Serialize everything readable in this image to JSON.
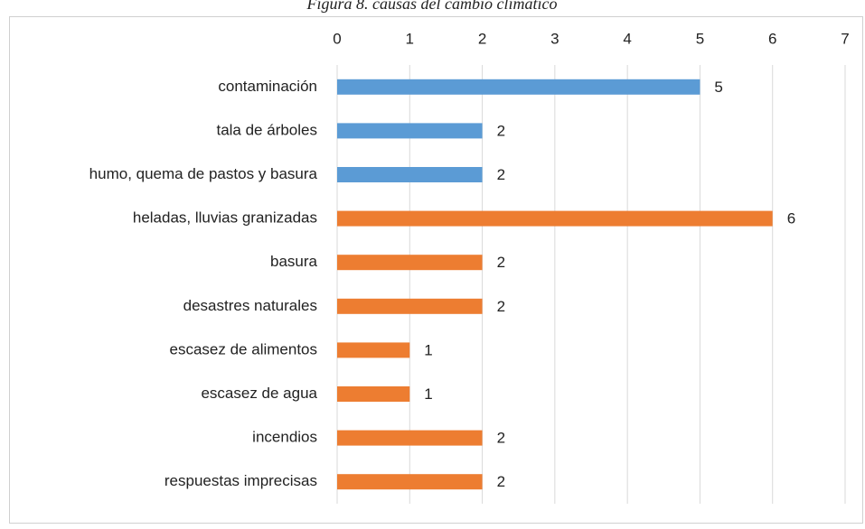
{
  "chart_data": {
    "type": "bar",
    "orientation": "horizontal",
    "title": "Figura 8. causas del cambio climático",
    "categories": [
      "contaminación",
      "tala de árboles",
      "humo, quema de pastos y basura",
      "heladas, lluvias granizadas",
      "basura",
      "desastres naturales",
      "escasez de alimentos",
      "escasez de agua",
      "incendios",
      "respuestas imprecisas"
    ],
    "values": [
      5,
      2,
      2,
      6,
      2,
      2,
      1,
      1,
      2,
      2
    ],
    "colors": [
      "#5b9bd5",
      "#5b9bd5",
      "#5b9bd5",
      "#ed7d31",
      "#ed7d31",
      "#ed7d31",
      "#ed7d31",
      "#ed7d31",
      "#ed7d31",
      "#ed7d31"
    ],
    "xlim": [
      0,
      7
    ],
    "xticks": [
      0,
      1,
      2,
      3,
      4,
      5,
      6,
      7
    ],
    "grid": true,
    "data_labels": true
  }
}
